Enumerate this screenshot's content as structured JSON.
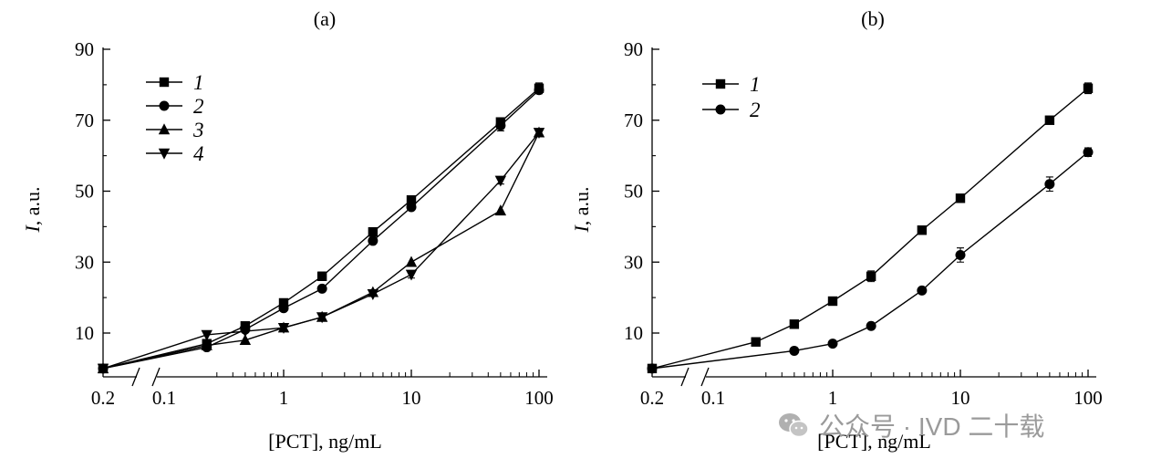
{
  "chart_data": [
    {
      "type": "line",
      "title": "(a)",
      "xlabel": "[PCT], ng/mL",
      "ylabel_italic": "I",
      "ylabel_rest": ", a.u.",
      "x_scale": "log with axis break",
      "xtick_labels": [
        "0.2",
        "0.1",
        "1",
        "10",
        "100"
      ],
      "ytick_labels": [
        "10",
        "30",
        "50",
        "70",
        "90"
      ],
      "ylim": [
        0,
        90
      ],
      "grid": false,
      "legend_position": "top-left",
      "series": [
        {
          "name": "1",
          "marker": "square",
          "x": [
            0.2,
            0.25,
            0.5,
            1,
            2,
            5,
            10,
            50,
            100
          ],
          "y": [
            0,
            7,
            12,
            18.5,
            26,
            38.5,
            47.5,
            69.5,
            79
          ],
          "err": [
            0,
            0,
            0,
            0.8,
            1.2,
            0.8,
            0.8,
            1,
            1.5
          ]
        },
        {
          "name": "2",
          "marker": "circle",
          "x": [
            0.2,
            0.25,
            0.5,
            1,
            2,
            5,
            10,
            50,
            100
          ],
          "y": [
            0,
            6,
            11,
            17,
            22.5,
            36,
            45.5,
            68.5,
            78.5
          ],
          "err": [
            0,
            0,
            0,
            0.5,
            0.5,
            0.5,
            0.5,
            1.5,
            1
          ]
        },
        {
          "name": "3",
          "marker": "triangle-up",
          "x": [
            0.2,
            0.25,
            0.5,
            1,
            2,
            5,
            10,
            50,
            100
          ],
          "y": [
            0,
            6.5,
            8,
            11.5,
            14.5,
            21.5,
            30,
            44.5,
            66.5
          ],
          "err": [
            0,
            0,
            0,
            0,
            0,
            0,
            0,
            0,
            1
          ]
        },
        {
          "name": "4",
          "marker": "triangle-down",
          "x": [
            0.2,
            0.25,
            0.5,
            1,
            2,
            5,
            10,
            50,
            100
          ],
          "y": [
            0,
            9.5,
            10.5,
            11.5,
            14.5,
            21,
            26.5,
            53,
            66.5
          ],
          "err": [
            0,
            0,
            0,
            0.5,
            0,
            0,
            1,
            1,
            1
          ]
        }
      ]
    },
    {
      "type": "line",
      "title": "(b)",
      "xlabel": "[PCT], ng/mL",
      "ylabel_italic": "I",
      "ylabel_rest": ", a.u.",
      "x_scale": "log with axis break",
      "xtick_labels": [
        "0.2",
        "0.1",
        "1",
        "10",
        "100"
      ],
      "ytick_labels": [
        "10",
        "30",
        "50",
        "70",
        "90"
      ],
      "ylim": [
        0,
        90
      ],
      "grid": false,
      "legend_position": "top-left",
      "series": [
        {
          "name": "1",
          "marker": "square",
          "x": [
            0.2,
            0.25,
            0.5,
            1,
            2,
            5,
            10,
            50,
            100
          ],
          "y": [
            0,
            7.5,
            12.5,
            19,
            26,
            39,
            48,
            70,
            79
          ],
          "err": [
            0,
            0,
            0,
            0,
            1.5,
            0,
            0,
            0,
            1.5
          ]
        },
        {
          "name": "2",
          "marker": "circle",
          "x": [
            0.2,
            0.5,
            1,
            2,
            5,
            10,
            50,
            100
          ],
          "y": [
            0,
            5,
            7,
            12,
            22,
            32,
            52,
            61
          ],
          "err": [
            0,
            0,
            0,
            0,
            0,
            2,
            2,
            1.2
          ]
        }
      ]
    }
  ],
  "watermark": {
    "text": "公众号 · IVD 二十载",
    "icon": "wechat-icon"
  }
}
